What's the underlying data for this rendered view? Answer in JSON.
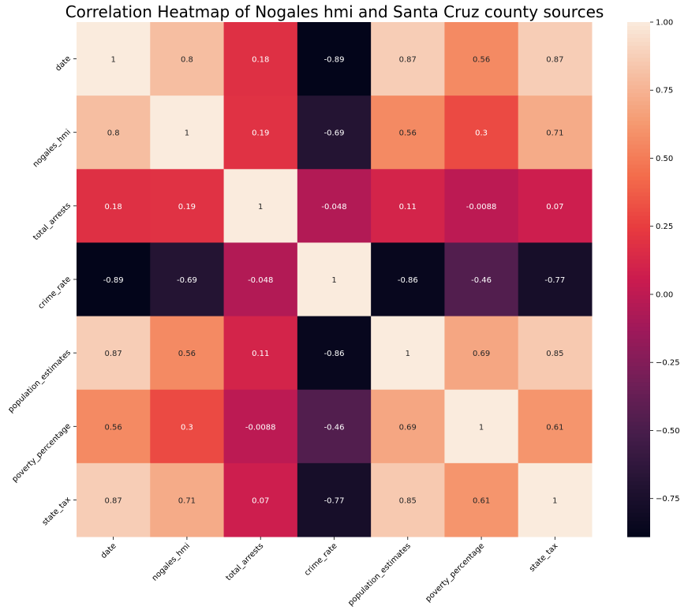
{
  "chart_data": {
    "type": "heatmap",
    "title": "Correlation Heatmap of Nogales hmi and Santa Cruz county sources",
    "xlabel": "",
    "ylabel": "",
    "row_labels": [
      "date",
      "nogales_hmi",
      "total_arrests",
      "crime_rate",
      "population_estimates",
      "poverty_percentage",
      "state_tax"
    ],
    "col_labels": [
      "date",
      "nogales_hmi",
      "total_arrests",
      "crime_rate",
      "population_estimates",
      "poverty_percentage",
      "state_tax"
    ],
    "values": [
      [
        1,
        0.8,
        0.18,
        -0.89,
        0.87,
        0.56,
        0.87
      ],
      [
        0.8,
        1,
        0.19,
        -0.69,
        0.56,
        0.3,
        0.71
      ],
      [
        0.18,
        0.19,
        1,
        -0.048,
        0.11,
        -0.0088,
        0.07
      ],
      [
        -0.89,
        -0.69,
        -0.048,
        1,
        -0.86,
        -0.46,
        -0.77
      ],
      [
        0.87,
        0.56,
        0.11,
        -0.86,
        1,
        0.69,
        0.85
      ],
      [
        0.56,
        0.3,
        -0.0088,
        -0.46,
        0.69,
        1,
        0.61
      ],
      [
        0.87,
        0.71,
        0.07,
        -0.77,
        0.85,
        0.61,
        1
      ]
    ],
    "annotations": [
      [
        "1",
        "0.8",
        "0.18",
        "-0.89",
        "0.87",
        "0.56",
        "0.87"
      ],
      [
        "0.8",
        "1",
        "0.19",
        "-0.69",
        "0.56",
        "0.3",
        "0.71"
      ],
      [
        "0.18",
        "0.19",
        "1",
        "-0.048",
        "0.11",
        "-0.0088",
        "0.07"
      ],
      [
        "-0.89",
        "-0.69",
        "-0.048",
        "1",
        "-0.86",
        "-0.46",
        "-0.77"
      ],
      [
        "0.87",
        "0.56",
        "0.11",
        "-0.86",
        "1",
        "0.69",
        "0.85"
      ],
      [
        "0.56",
        "0.3",
        "-0.0088",
        "-0.46",
        "0.69",
        "1",
        "0.61"
      ],
      [
        "0.87",
        "0.71",
        "0.07",
        "-0.77",
        "0.85",
        "0.61",
        "1"
      ]
    ],
    "colormap": "rocket",
    "vmin": -0.89,
    "vmax": 1.0,
    "colorbar": {
      "ticks": [
        1.0,
        0.75,
        0.5,
        0.25,
        0.0,
        -0.25,
        -0.5,
        -0.75
      ],
      "tick_labels": [
        "1.00",
        "0.75",
        "0.50",
        "0.25",
        "0.00",
        "−0.25",
        "−0.50",
        "−0.75"
      ]
    },
    "grid": false
  }
}
